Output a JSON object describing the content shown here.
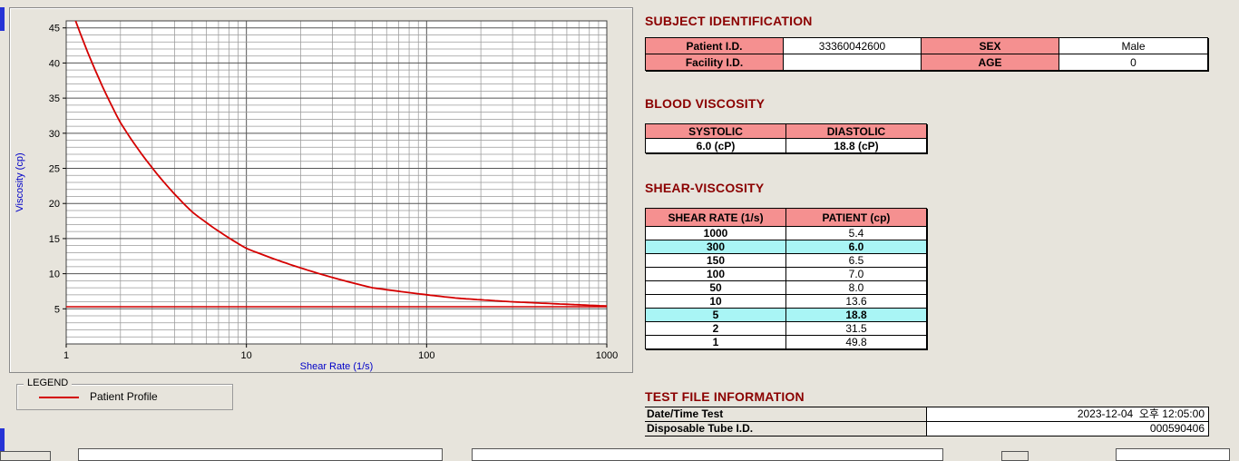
{
  "colors": {
    "header-pink": "#F59090",
    "highlight-cyan": "#A9F5F5",
    "heading-maroon": "#8B0000",
    "axis-blue": "#0000C8",
    "series-red": "#D40000"
  },
  "legend": {
    "group_label": "LEGEND",
    "series_label": "Patient Profile",
    "line_color": "#D40000"
  },
  "subject": {
    "title": "SUBJECT IDENTIFICATION",
    "rows": [
      {
        "label1": "Patient I.D.",
        "value1": "33360042600",
        "label2": "SEX",
        "value2": "Male"
      },
      {
        "label1": "Facility I.D.",
        "value1": "",
        "label2": "AGE",
        "value2": "0"
      }
    ]
  },
  "blood_viscosity": {
    "title": "BLOOD VISCOSITY",
    "headers": [
      "SYSTOLIC",
      "DIASTOLIC"
    ],
    "values": [
      "6.0 (cP)",
      "18.8 (cP)"
    ]
  },
  "shear_viscosity": {
    "title": "SHEAR-VISCOSITY",
    "headers": [
      "SHEAR RATE (1/s)",
      "PATIENT (cp)"
    ],
    "rows": [
      {
        "rate": "1000",
        "value": "5.4",
        "highlight": false
      },
      {
        "rate": "300",
        "value": "6.0",
        "highlight": true
      },
      {
        "rate": "150",
        "value": "6.5",
        "highlight": false
      },
      {
        "rate": "100",
        "value": "7.0",
        "highlight": false
      },
      {
        "rate": "50",
        "value": "8.0",
        "highlight": false
      },
      {
        "rate": "10",
        "value": "13.6",
        "highlight": false
      },
      {
        "rate": "5",
        "value": "18.8",
        "highlight": true
      },
      {
        "rate": "2",
        "value": "31.5",
        "highlight": false
      },
      {
        "rate": "1",
        "value": "49.8",
        "highlight": false
      }
    ]
  },
  "test_file": {
    "title": "TEST FILE INFORMATION",
    "rows": [
      {
        "label": "Date/Time Test",
        "value": "2023-12-04  오후 12:05:00"
      },
      {
        "label": "Disposable Tube I.D.",
        "value": "000590406"
      }
    ]
  },
  "chart_data": {
    "type": "line",
    "x": [
      1,
      2,
      5,
      10,
      50,
      100,
      150,
      300,
      1000
    ],
    "series": [
      {
        "name": "Patient Profile",
        "values": [
          49.8,
          31.5,
          18.8,
          13.6,
          8.0,
          7.0,
          6.5,
          6.0,
          5.4
        ]
      }
    ],
    "baseline": 5.3,
    "title": "",
    "xlabel": "Shear Rate (1/s)",
    "ylabel": "Viscosity (cp)",
    "x_scale": "log",
    "xlim": [
      1,
      1000
    ],
    "ylim": [
      0,
      46
    ],
    "x_ticks": [
      1,
      10,
      100,
      1000
    ],
    "y_ticks": [
      5,
      10,
      15,
      20,
      25,
      30,
      35,
      40,
      45
    ],
    "grid": true,
    "legend_position": "below-left",
    "line_color": "#D40000"
  }
}
